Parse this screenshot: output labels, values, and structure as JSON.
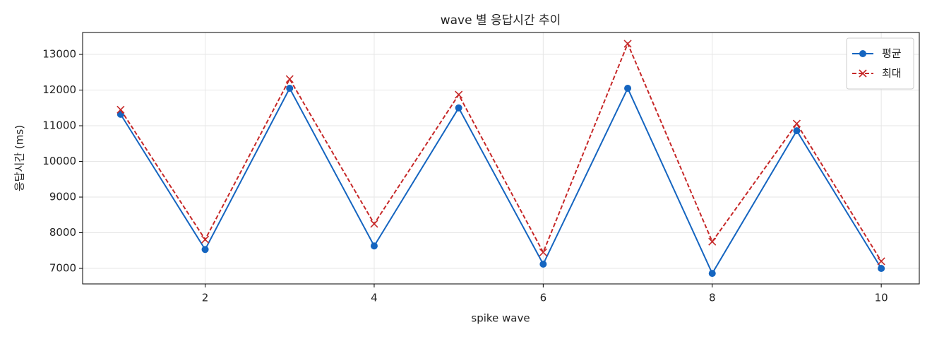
{
  "chart_data": {
    "type": "line",
    "title": "wave 별 응답시간 추이",
    "xlabel": "spike wave",
    "ylabel": "응답시간 (ms)",
    "x": [
      1,
      2,
      3,
      4,
      5,
      6,
      7,
      8,
      9,
      10
    ],
    "series": [
      {
        "name": "평균",
        "color": "#1565c0",
        "marker": "o",
        "linestyle": "solid",
        "values": [
          11320,
          7530,
          12050,
          7630,
          11500,
          7120,
          12050,
          6860,
          10860,
          7000
        ]
      },
      {
        "name": "최대",
        "color": "#c62828",
        "marker": "x",
        "linestyle": "dashed",
        "values": [
          11450,
          7810,
          12310,
          8250,
          11870,
          7450,
          13300,
          7750,
          11060,
          7200
        ]
      }
    ],
    "xlim": [
      0.55,
      10.45
    ],
    "ylim": [
      6565,
      13615
    ],
    "xticks": [
      2,
      4,
      6,
      8,
      10
    ],
    "yticks": [
      7000,
      8000,
      9000,
      10000,
      11000,
      12000,
      13000
    ],
    "grid": true,
    "legend": "upper right"
  }
}
